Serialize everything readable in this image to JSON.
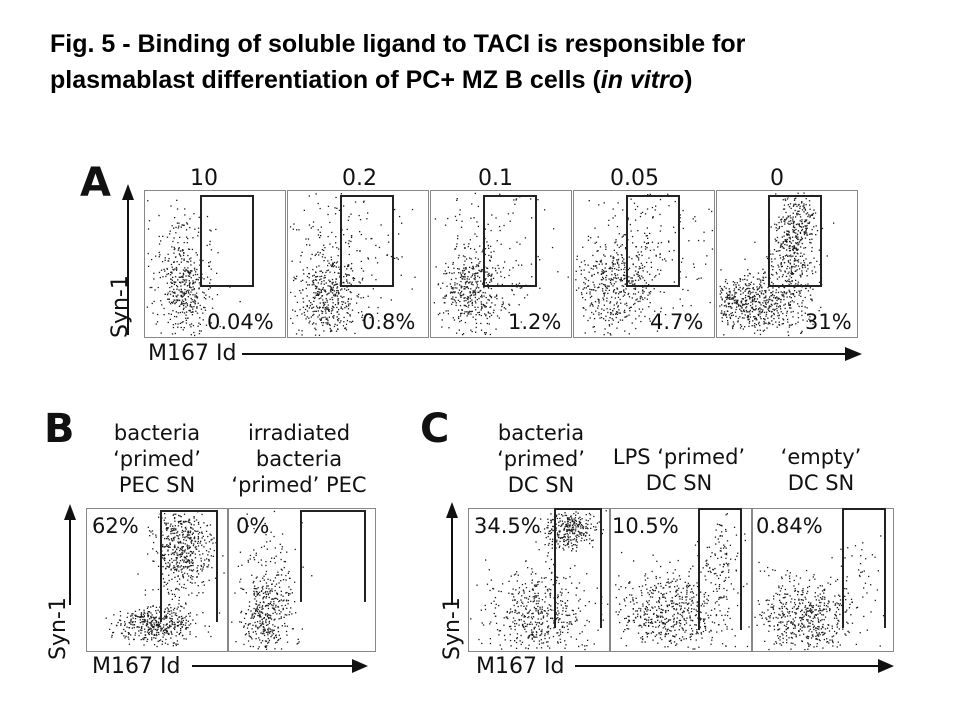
{
  "figure_title_plain": "Fig. 5 - Binding of soluble ligand to TACI is responsible for",
  "figure_title_line2_pre": "plasmablast differentiation of PC+ MZ B cells (",
  "figure_title_line2_italic": "in vitro",
  "figure_title_line2_post": ")",
  "panel_a": {
    "letter": "A",
    "y_label": "Syn-1",
    "x_label": "M167 Id",
    "concentrations": [
      "10",
      "0.2",
      "0.1",
      "0.05",
      "0"
    ],
    "percentages": [
      "0.04%",
      "0.8%",
      "1.2%",
      "4.7%",
      "31%"
    ]
  },
  "panel_b": {
    "letter": "B",
    "y_label": "Syn-1",
    "x_label": "M167 Id",
    "conditions": [
      {
        "line1": "bacteria",
        "line2": "‘primed’",
        "line3": "PEC SN",
        "pct": "62%"
      },
      {
        "line1": "irradiated",
        "line2": "bacteria",
        "line3": "‘primed’ PEC",
        "pct": "0%"
      }
    ]
  },
  "panel_c": {
    "letter": "C",
    "y_label": "Syn-1",
    "x_label": "M167 Id",
    "conditions": [
      {
        "line1": "bacteria",
        "line2": "‘primed’",
        "line3": "DC SN",
        "pct": "34.5%"
      },
      {
        "line1": "LPS ‘primed’",
        "line2": "DC SN",
        "line3": "",
        "pct": "10.5%"
      },
      {
        "line1": "‘empty’",
        "line2": "DC SN",
        "line3": "",
        "pct": "0.84%"
      }
    ]
  },
  "colors": {
    "ink": "#111111",
    "gate": "#222222",
    "frame": "#888888",
    "background": "#ffffff"
  }
}
